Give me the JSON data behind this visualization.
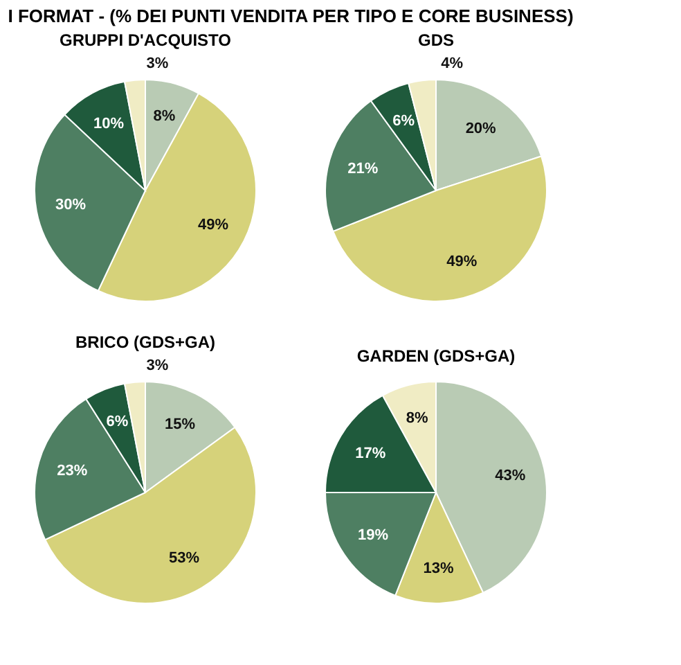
{
  "chart_data": [
    {
      "type": "pie",
      "title": "GRUPPI D'ACQUISTO",
      "categories": [
        null,
        null,
        null,
        null,
        null
      ],
      "values": [
        8,
        49,
        30,
        10,
        3
      ],
      "value_labels": [
        "8%",
        "49%",
        "30%",
        "10%",
        "3%"
      ],
      "colors": [
        "#b9cbb4",
        "#d6d27a",
        "#4e7f62",
        "#1f5a3c",
        "#f0ecc4"
      ],
      "legend": false
    },
    {
      "type": "pie",
      "title": "GDS",
      "categories": [
        null,
        null,
        null,
        null,
        null
      ],
      "values": [
        20,
        49,
        21,
        6,
        4
      ],
      "value_labels": [
        "20%",
        "49%",
        "21%",
        "6%",
        "4%"
      ],
      "colors": [
        "#b9cbb4",
        "#d6d27a",
        "#4e7f62",
        "#1f5a3c",
        "#f0ecc4"
      ],
      "legend": false
    },
    {
      "type": "pie",
      "title": "BRICO (GDS+GA)",
      "categories": [
        null,
        null,
        null,
        null,
        null
      ],
      "values": [
        15,
        53,
        23,
        6,
        3
      ],
      "value_labels": [
        "15%",
        "53%",
        "23%",
        "6%",
        "3%"
      ],
      "colors": [
        "#b9cbb4",
        "#d6d27a",
        "#4e7f62",
        "#1f5a3c",
        "#f0ecc4"
      ],
      "legend": false
    },
    {
      "type": "pie",
      "title": "GARDEN (GDS+GA)",
      "subtitle": "I FORMAT - (% DEI PUNTI VENDITA PER TIPO E CORE BUSINESS)",
      "categories": [
        null,
        null,
        null,
        null,
        null
      ],
      "values": [
        43,
        13,
        19,
        17,
        8
      ],
      "value_labels": [
        "43%",
        "13%",
        "19%",
        "17%",
        "8%"
      ],
      "colors": [
        "#b9cbb4",
        "#d6d27a",
        "#4e7f62",
        "#1f5a3c",
        "#f0ecc4"
      ],
      "legend": false
    }
  ]
}
